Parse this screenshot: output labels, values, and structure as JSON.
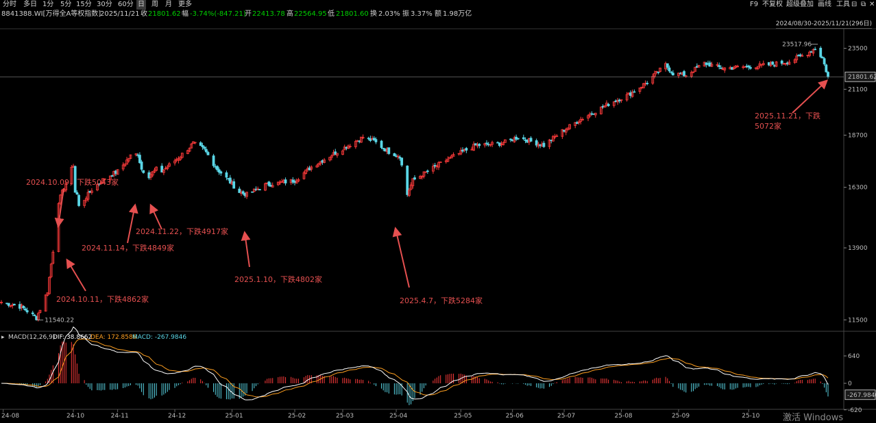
{
  "toolbar": {
    "periods": [
      "分时",
      "多日",
      "1分",
      "5分",
      "15分",
      "30分",
      "60分",
      "日",
      "周",
      "月",
      "更多"
    ],
    "active_period": "日",
    "right_items": [
      "F9",
      "不复权",
      "超级叠加",
      "画线",
      "工具"
    ]
  },
  "info": {
    "code": "8841388.WI[万得全A等权指数]",
    "date": "2025/11/21",
    "close_label": "收",
    "close": "21801.62",
    "change_label": "幅",
    "change": "-3.74%(-847.21)",
    "open_label": "开",
    "open": "22413.78",
    "high_label": "高",
    "high": "22564.95",
    "low_label": "低",
    "low": "21801.60",
    "turnover_label": "换",
    "turnover": "2.03%",
    "amplitude_label": "振",
    "amplitude": "3.37%",
    "amount_label": "额",
    "amount": "1.98万亿"
  },
  "range_label": "2024/08/30-2025/11/21(296日)",
  "macd": {
    "title": "MACD(12,26,9)",
    "dif_label": "DIF: 38.8662",
    "dea_label": "DEA: 172.8586",
    "macd_label": "MACD: -267.9846",
    "yticks": [
      640,
      0,
      -620
    ],
    "current_value_label": "-267.9846"
  },
  "watermark": "激活 Windows",
  "colors": {
    "up": "#ff3b3b",
    "down": "#5ad6e6",
    "dif": "#ffffff",
    "dea": "#ffa020",
    "annotation": "#e55050",
    "current_box": "#ffffff"
  },
  "chart_data": {
    "type": "candlestick",
    "ylim": [
      11200,
      24300
    ],
    "yticks": [
      23500,
      21100,
      18700,
      16300,
      13900,
      11500
    ],
    "yticks_scale": "log",
    "xticks": [
      "24-08",
      "24-10",
      "24-11",
      "24-12",
      "25-01",
      "25-02",
      "25-03",
      "25-04",
      "25-05",
      "25-06",
      "25-07",
      "25-08",
      "25-09",
      "25-10"
    ],
    "current_price_label": "21801.62",
    "max_label": "23517.96",
    "min_label": "11540.22",
    "close_path": [
      {
        "t": "24-08-30",
        "v": 12050
      },
      {
        "t": "24-09-10",
        "v": 11900
      },
      {
        "t": "24-09-18",
        "v": 11560
      },
      {
        "t": "24-09-24",
        "v": 12400
      },
      {
        "t": "24-09-27",
        "v": 13800
      },
      {
        "t": "24-09-30",
        "v": 15700
      },
      {
        "t": "24-10-08",
        "v": 17300
      },
      {
        "t": "24-10-09",
        "v": 16100
      },
      {
        "t": "24-10-10",
        "v": 16000
      },
      {
        "t": "24-10-11",
        "v": 15500
      },
      {
        "t": "24-10-18",
        "v": 16200
      },
      {
        "t": "24-10-25",
        "v": 16700
      },
      {
        "t": "24-11-01",
        "v": 17000
      },
      {
        "t": "24-11-08",
        "v": 17700
      },
      {
        "t": "24-11-12",
        "v": 17800
      },
      {
        "t": "24-11-14",
        "v": 17100
      },
      {
        "t": "24-11-18",
        "v": 16800
      },
      {
        "t": "24-11-22",
        "v": 17100
      },
      {
        "t": "24-11-25",
        "v": 17000
      },
      {
        "t": "24-12-05",
        "v": 17700
      },
      {
        "t": "24-12-12",
        "v": 18300
      },
      {
        "t": "24-12-18",
        "v": 18000
      },
      {
        "t": "24-12-25",
        "v": 17100
      },
      {
        "t": "24-12-30",
        "v": 16700
      },
      {
        "t": "25-01-06",
        "v": 16100
      },
      {
        "t": "25-01-10",
        "v": 16000
      },
      {
        "t": "25-01-20",
        "v": 16400
      },
      {
        "t": "25-02-05",
        "v": 16600
      },
      {
        "t": "25-02-14",
        "v": 17200
      },
      {
        "t": "25-02-24",
        "v": 17700
      },
      {
        "t": "25-03-06",
        "v": 18200
      },
      {
        "t": "25-03-14",
        "v": 18600
      },
      {
        "t": "25-03-20",
        "v": 18400
      },
      {
        "t": "25-03-28",
        "v": 17900
      },
      {
        "t": "25-04-03",
        "v": 17700
      },
      {
        "t": "25-04-07",
        "v": 16000
      },
      {
        "t": "25-04-10",
        "v": 16600
      },
      {
        "t": "25-04-18",
        "v": 17000
      },
      {
        "t": "25-04-30",
        "v": 17600
      },
      {
        "t": "25-05-14",
        "v": 18200
      },
      {
        "t": "25-05-28",
        "v": 18300
      },
      {
        "t": "25-06-06",
        "v": 18600
      },
      {
        "t": "25-06-20",
        "v": 18200
      },
      {
        "t": "25-06-30",
        "v": 18900
      },
      {
        "t": "25-07-10",
        "v": 19500
      },
      {
        "t": "25-07-25",
        "v": 20300
      },
      {
        "t": "25-08-05",
        "v": 20800
      },
      {
        "t": "25-08-15",
        "v": 21500
      },
      {
        "t": "25-08-25",
        "v": 22500
      },
      {
        "t": "25-08-29",
        "v": 22000
      },
      {
        "t": "25-09-05",
        "v": 21900
      },
      {
        "t": "25-09-15",
        "v": 22600
      },
      {
        "t": "25-09-25",
        "v": 22300
      },
      {
        "t": "25-10-10",
        "v": 22400
      },
      {
        "t": "25-10-20",
        "v": 22500
      },
      {
        "t": "25-10-31",
        "v": 22700
      },
      {
        "t": "25-11-10",
        "v": 23200
      },
      {
        "t": "25-11-14",
        "v": 23500
      },
      {
        "t": "25-11-18",
        "v": 22900
      },
      {
        "t": "25-11-21",
        "v": 21801.62
      }
    ],
    "annotations": [
      {
        "text": "2024.10.09，下跌5043家"
      },
      {
        "text": "2024.10.11，下跌4862家"
      },
      {
        "text": "2024.11.14，下跌4849家"
      },
      {
        "text": "2024.11.22，下跌4917家"
      },
      {
        "text": "2025.1.10，下跌4802家"
      },
      {
        "text": "2025.4.7，下跌5284家"
      },
      {
        "text": "2025.11.21，下跌"
      },
      {
        "text": "5072家"
      }
    ]
  }
}
